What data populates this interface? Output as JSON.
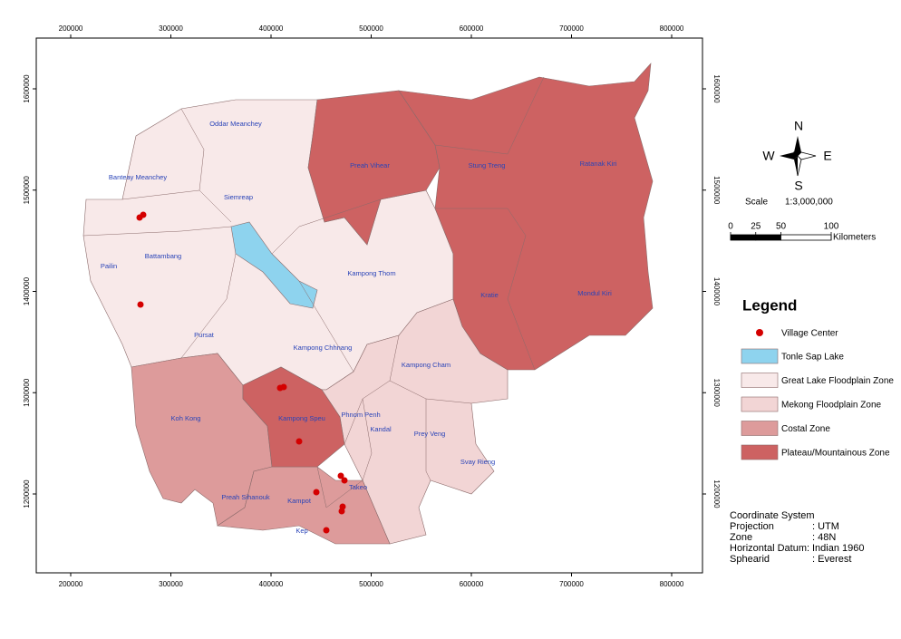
{
  "map": {
    "x_ticks": [
      200000,
      300000,
      400000,
      500000,
      600000,
      700000,
      800000
    ],
    "y_ticks": [
      1200000,
      1300000,
      1400000,
      1500000,
      1600000
    ],
    "provinces": [
      "Oddar Meanchey",
      "Preah Vihear",
      "Stung Treng",
      "Ratanak Kiri",
      "Banteay Meanchey",
      "Siemreap",
      "Battambang",
      "Pailin",
      "Kampong Thom",
      "Kratie",
      "Mondul Kiri",
      "Pursat",
      "Kampong Chhnang",
      "Kampong Cham",
      "Koh Kong",
      "Kampong Speu",
      "Phnom Penh",
      "Kandal",
      "Prey Veng",
      "Svay Rieng",
      "Takeo",
      "Preah Sihanouk",
      "Kampot",
      "Kep"
    ]
  },
  "compass": {
    "n": "N",
    "s": "S",
    "e": "E",
    "w": "W"
  },
  "scale": {
    "label": "Scale",
    "ratio": "1:3,000,000",
    "ticks": [
      0,
      25,
      50,
      100
    ],
    "unit": "Kilometers"
  },
  "legend": {
    "title": "Legend",
    "point": {
      "label": "Village Center",
      "color": "#d40000"
    },
    "patches": [
      {
        "label": "Tonle Sap Lake",
        "color": "#8ed3ee"
      },
      {
        "label": "Great Lake Floodplain Zone",
        "color": "#f8e9e9"
      },
      {
        "label": "Mekong Floodplain Zone",
        "color": "#f2d5d5"
      },
      {
        "label": "Costal Zone",
        "color": "#dd9b9b"
      },
      {
        "label": "Plateau/Mountainous Zone",
        "color": "#cd6262"
      }
    ]
  },
  "coordinate_system": {
    "title": "Coordinate System",
    "rows": [
      [
        "Projection",
        ": UTM"
      ],
      [
        "Zone",
        ": 48N"
      ],
      [
        "Horizontal Datum:",
        "Indian 1960"
      ],
      [
        "Sphearid",
        ": Everest"
      ]
    ]
  }
}
